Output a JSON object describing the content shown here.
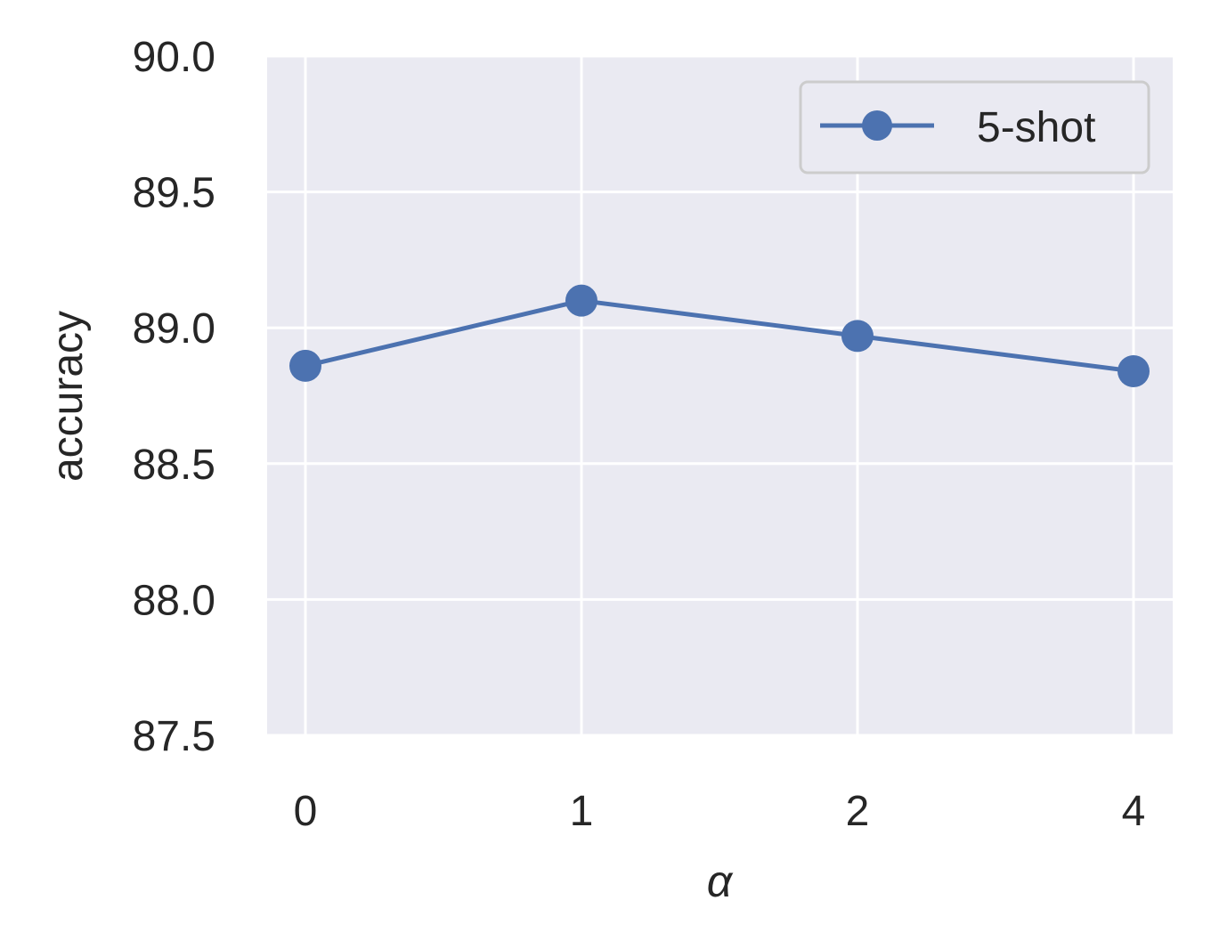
{
  "chart_data": {
    "type": "line",
    "title": "",
    "xlabel": "α",
    "ylabel": "accuracy",
    "x_categories": [
      "0",
      "1",
      "2",
      "4"
    ],
    "ylim": [
      87.5,
      90.0
    ],
    "yticks": [
      "87.5",
      "88.0",
      "88.5",
      "89.0",
      "89.5",
      "90.0"
    ],
    "grid": true,
    "legend_position": "top-right",
    "series": [
      {
        "name": "5-shot",
        "marker": "circle",
        "values": [
          88.86,
          89.1,
          88.97,
          88.84
        ]
      }
    ],
    "colors": {
      "series": "#4c72b0",
      "plot_background": "#eaeaf2",
      "grid": "#ffffff",
      "text": "#262626",
      "legend_border": "#cccccc"
    }
  }
}
